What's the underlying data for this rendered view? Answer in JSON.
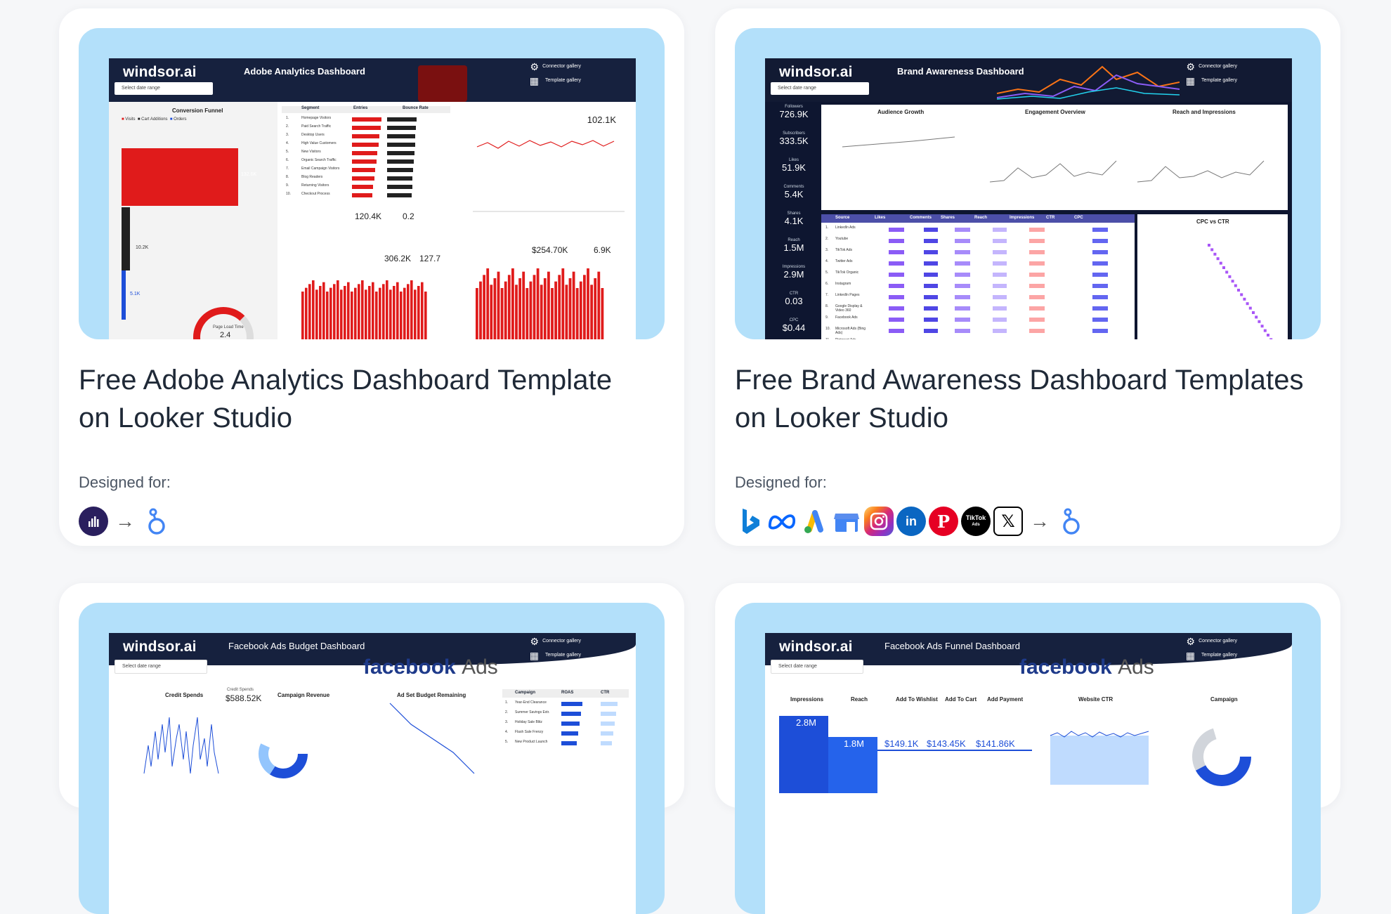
{
  "cards": [
    {
      "title_line1": "Free Adobe Analytics Dashboard Template",
      "title_line2": "on Looker Studio",
      "designed_for": "Designed for:",
      "dashboard": {
        "logo": "windsor.ai",
        "title": "Adobe Analytics Dashboard",
        "menu_connector": "Connector gallery",
        "menu_template": "Template gallery",
        "date_range": "Select date range",
        "funnel_title": "Conversion Funnel",
        "funnel_legend": [
          "Visits",
          "Cart Additions",
          "Orders"
        ],
        "funnel_values": [
          "132.6K",
          "10.2K",
          "5.1K"
        ],
        "table_headers": [
          "Segment",
          "Entries",
          "Bounce Rate"
        ],
        "table_rows": [
          "Homepage Visitors",
          "Paid Search Traffic",
          "Desktop Users",
          "High Value Customers",
          "New Visitors",
          "Organic Search Traffic",
          "Email Campaign Visitors",
          "Blog Readers",
          "Returning Visitors",
          "Checkout Process"
        ],
        "kpi_unique_visitors": "102.1K",
        "kpi_a": "120.4K",
        "kpi_b": "0.2",
        "kpi_pageviews": "306.2K",
        "kpi_time_spent": "127.7",
        "kpi_revenue": "$254.70K",
        "kpi_units": "6.9K",
        "kpi_page_load": "2.4",
        "page_load_label": "Page Load Time"
      },
      "logos": [
        "adobe-analytics-icon",
        "looker-studio-icon"
      ]
    },
    {
      "title_line1": "Free Brand Awareness Dashboard Templates",
      "title_line2": "on Looker Studio",
      "designed_for": "Designed for:",
      "dashboard": {
        "logo": "windsor.ai",
        "title": "Brand Awareness Dashboard",
        "menu_connector": "Connector gallery",
        "menu_template": "Template gallery",
        "date_range": "Select date range",
        "side_kpis": [
          {
            "label": "Followers",
            "value": "726.9K"
          },
          {
            "label": "Subscribers",
            "value": "333.5K"
          },
          {
            "label": "Likes",
            "value": "51.9K"
          },
          {
            "label": "Comments",
            "value": "5.4K"
          },
          {
            "label": "Shares",
            "value": "4.1K"
          },
          {
            "label": "Reach",
            "value": "1.5M"
          },
          {
            "label": "Impressions",
            "value": "2.9M"
          },
          {
            "label": "CTR",
            "value": "0.03"
          },
          {
            "label": "CPC",
            "value": "$0.44"
          }
        ],
        "panels": [
          "Audience Growth",
          "Engagement Overview",
          "Reach and Impressions",
          "CPC vs CTR"
        ],
        "table_headers": [
          "Source",
          "Likes",
          "Comments",
          "Shares",
          "Reach",
          "Impressions",
          "CTR",
          "CPC"
        ],
        "table_rows": [
          "LinkedIn Ads",
          "Youtube",
          "TikTok Ads",
          "Twitter Ads",
          "TikTok Organic",
          "Instagram",
          "LinkedIn Pages",
          "Google Display & Video 360",
          "Facebook Ads",
          "Microsoft Ads (Bing Ads)",
          "Pinterest Ads"
        ]
      },
      "logos": [
        "bing-icon",
        "meta-icon",
        "google-ads-icon",
        "google-my-business-icon",
        "instagram-icon",
        "linkedin-icon",
        "pinterest-icon",
        "tiktok-ads-icon",
        "x-icon",
        "looker-studio-icon"
      ],
      "tiktok_label": "TikTok",
      "tiktok_sub": "Ads"
    },
    {
      "dashboard": {
        "logo": "windsor.ai",
        "title": "Facebook Ads Budget Dashboard",
        "menu_connector": "Connector gallery",
        "menu_template": "Template gallery",
        "date_range": "Select date range",
        "brand": "facebook",
        "brand_suffix": "Ads",
        "panels": [
          "Credit Spends",
          "Campaign Revenue",
          "Ad Set Budget Remaining"
        ],
        "credit_spends_label": "Credit Spends",
        "credit_spends_value": "$588.52K",
        "table_headers": [
          "Campaign",
          "ROAS",
          "CTR"
        ],
        "table_rows": [
          "Year-End Clearance",
          "Summer Savings Extr.",
          "Holiday Sale Blitz",
          "Flash Sale Frenzy",
          "New Product Launch"
        ]
      }
    },
    {
      "dashboard": {
        "logo": "windsor.ai",
        "title": "Facebook Ads Funnel Dashboard",
        "menu_connector": "Connector gallery",
        "menu_template": "Template gallery",
        "date_range": "Select date range",
        "brand": "facebook",
        "brand_suffix": "Ads",
        "metrics": [
          "Impressions",
          "Reach",
          "Add To Wishlist",
          "Add To Cart",
          "Add Payment"
        ],
        "values": [
          "2.8M",
          "1.8M",
          "$149.1K",
          "$143.45K",
          "$141.86K"
        ],
        "panels": [
          "Website CTR",
          "Campaign"
        ]
      }
    }
  ],
  "colors": {
    "accent_red": "#e01b1b",
    "accent_blue": "#1d4ed8",
    "thumb_bg": "#b3e0fa",
    "header_dark": "#16213e"
  }
}
